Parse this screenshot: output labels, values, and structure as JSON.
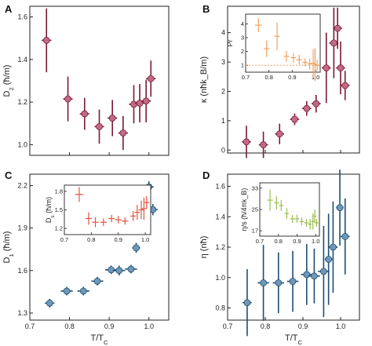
{
  "chart_data": [
    {
      "panel": "A",
      "type": "scatter",
      "ylabel_base": "D",
      "ylabel_sub": "2",
      "ylabel_unit": " (ħ/m)",
      "xlim": [
        0.7,
        1.05
      ],
      "ylim": [
        0.95,
        1.65
      ],
      "yticks": [
        "1.0",
        "1.2",
        "1.4",
        "1.6"
      ],
      "color": "#c06a86",
      "err_color": "#7a1a34",
      "points": [
        {
          "x": 0.742,
          "y": 1.49,
          "xerr": 0.012,
          "yerr": 0.15
        },
        {
          "x": 0.796,
          "y": 1.215,
          "xerr": 0.012,
          "yerr": 0.105
        },
        {
          "x": 0.838,
          "y": 1.145,
          "xerr": 0.012,
          "yerr": 0.075
        },
        {
          "x": 0.875,
          "y": 1.085,
          "xerr": 0.012,
          "yerr": 0.08
        },
        {
          "x": 0.908,
          "y": 1.125,
          "xerr": 0.012,
          "yerr": 0.085
        },
        {
          "x": 0.935,
          "y": 1.055,
          "xerr": 0.012,
          "yerr": 0.08
        },
        {
          "x": 0.962,
          "y": 1.19,
          "xerr": 0.012,
          "yerr": 0.09
        },
        {
          "x": 0.977,
          "y": 1.195,
          "xerr": 0.012,
          "yerr": 0.09
        },
        {
          "x": 0.993,
          "y": 1.205,
          "xerr": 0.012,
          "yerr": 0.1
        },
        {
          "x": 1.005,
          "y": 1.31,
          "xerr": 0.012,
          "yerr": 0.085
        }
      ]
    },
    {
      "panel": "B",
      "type": "scatter",
      "ylabel": "κ (nħk_B/m)",
      "xlim": [
        0.7,
        1.05
      ],
      "ylim": [
        -0.1,
        4.9
      ],
      "yticks": [
        "0",
        "1",
        "2",
        "3",
        "4"
      ],
      "color": "#c06a86",
      "err_color": "#7a1a34",
      "points": [
        {
          "x": 0.75,
          "y": 0.28,
          "xerr": 0.012,
          "yerr": 0.55
        },
        {
          "x": 0.795,
          "y": 0.18,
          "xerr": 0.012,
          "yerr": 0.45
        },
        {
          "x": 0.838,
          "y": 0.55,
          "xerr": 0.012,
          "yerr": 0.35
        },
        {
          "x": 0.878,
          "y": 1.05,
          "xerr": 0.012,
          "yerr": 0.2
        },
        {
          "x": 0.91,
          "y": 1.42,
          "xerr": 0.012,
          "yerr": 0.25
        },
        {
          "x": 0.935,
          "y": 1.58,
          "xerr": 0.012,
          "yerr": 0.3
        },
        {
          "x": 0.962,
          "y": 2.8,
          "xerr": 0.012,
          "yerr": 1.2
        },
        {
          "x": 0.982,
          "y": 3.65,
          "xerr": 0.012,
          "yerr": 1.2
        },
        {
          "x": 0.992,
          "y": 4.15,
          "xerr": 0.012,
          "yerr": 0.7
        },
        {
          "x": 1.0,
          "y": 2.8,
          "xerr": 0.012,
          "yerr": 0.9
        },
        {
          "x": 1.012,
          "y": 2.2,
          "xerr": 0.012,
          "yerr": 0.5
        }
      ],
      "inset": {
        "ylabel": "Pr",
        "xlim": [
          0.7,
          1.02
        ],
        "ylim": [
          0.5,
          4.7
        ],
        "yticks": [
          "1",
          "2",
          "3",
          "4"
        ],
        "xticks": [
          "0.7",
          "0.8",
          "0.9",
          "1.0"
        ],
        "color": "#f0a060",
        "ref_line": 1,
        "points": [
          {
            "x": 0.755,
            "y": 3.9,
            "xerr": 0.015,
            "yerr": 0.5
          },
          {
            "x": 0.79,
            "y": 2.2,
            "xerr": 0.012,
            "yerr": 0.6
          },
          {
            "x": 0.835,
            "y": 3.1,
            "xerr": 0.012,
            "yerr": 1.0
          },
          {
            "x": 0.875,
            "y": 1.65,
            "xerr": 0.012,
            "yerr": 0.4
          },
          {
            "x": 0.905,
            "y": 1.55,
            "xerr": 0.012,
            "yerr": 0.35
          },
          {
            "x": 0.93,
            "y": 1.4,
            "xerr": 0.012,
            "yerr": 0.35
          },
          {
            "x": 0.955,
            "y": 1.2,
            "xerr": 0.012,
            "yerr": 0.3
          },
          {
            "x": 0.975,
            "y": 1.1,
            "xerr": 0.01,
            "yerr": 0.4
          },
          {
            "x": 0.99,
            "y": 1.15,
            "xerr": 0.01,
            "yerr": 1.0
          },
          {
            "x": 0.998,
            "y": 1.05,
            "xerr": 0.01,
            "yerr": 1.2
          },
          {
            "x": 1.007,
            "y": 1.0,
            "xerr": 0.01,
            "yerr": 0.4
          }
        ]
      }
    },
    {
      "panel": "C",
      "type": "scatter",
      "ylabel_base": "D",
      "ylabel_sub": "1",
      "ylabel_unit": " (ħ/m)",
      "xlabel": "T/T_C",
      "xlim": [
        0.7,
        1.05
      ],
      "ylim": [
        1.25,
        2.28
      ],
      "yticks": [
        "1.3",
        "1.6",
        "1.9",
        "2.2"
      ],
      "xticks": [
        "0.7",
        "0.8",
        "0.9",
        "1.0"
      ],
      "color": "#6f97b8",
      "err_color": "#1d4e73",
      "points": [
        {
          "x": 0.75,
          "y": 1.37,
          "xerr": 0.012,
          "yerr": 0.03
        },
        {
          "x": 0.793,
          "y": 1.455,
          "xerr": 0.015,
          "yerr": 0.03
        },
        {
          "x": 0.835,
          "y": 1.455,
          "xerr": 0.015,
          "yerr": 0.03
        },
        {
          "x": 0.87,
          "y": 1.525,
          "xerr": 0.015,
          "yerr": 0.03
        },
        {
          "x": 0.905,
          "y": 1.605,
          "xerr": 0.015,
          "yerr": 0.03
        },
        {
          "x": 0.925,
          "y": 1.6,
          "xerr": 0.015,
          "yerr": 0.035
        },
        {
          "x": 0.955,
          "y": 1.61,
          "xerr": 0.015,
          "yerr": 0.03
        },
        {
          "x": 0.968,
          "y": 1.76,
          "xerr": 0.01,
          "yerr": 0.035
        },
        {
          "x": 0.982,
          "y": 1.98,
          "xerr": 0.012,
          "yerr": 0.035
        },
        {
          "x": 1.0,
          "y": 2.19,
          "xerr": 0.012,
          "yerr": 0.04
        },
        {
          "x": 1.01,
          "y": 2.03,
          "xerr": 0.012,
          "yerr": 0.04
        }
      ],
      "inset": {
        "ylabel_base": "D",
        "ylabel_sub": "s",
        "ylabel_unit": " (ħ/m)",
        "xlim": [
          0.7,
          1.02
        ],
        "ylim": [
          1.1,
          1.9
        ],
        "yticks": [
          "1.2",
          "1.5",
          "1.8"
        ],
        "xticks": [
          "0.7",
          "0.8",
          "0.9",
          "1.0"
        ],
        "color": "#e0553f",
        "points": [
          {
            "x": 0.755,
            "y": 1.75,
            "xerr": 0.015,
            "yerr": 0.12
          },
          {
            "x": 0.79,
            "y": 1.36,
            "xerr": 0.012,
            "yerr": 0.1
          },
          {
            "x": 0.815,
            "y": 1.3,
            "xerr": 0.012,
            "yerr": 0.08
          },
          {
            "x": 0.845,
            "y": 1.3,
            "xerr": 0.012,
            "yerr": 0.06
          },
          {
            "x": 0.875,
            "y": 1.36,
            "xerr": 0.012,
            "yerr": 0.06
          },
          {
            "x": 0.9,
            "y": 1.34,
            "xerr": 0.012,
            "yerr": 0.06
          },
          {
            "x": 0.925,
            "y": 1.32,
            "xerr": 0.012,
            "yerr": 0.06
          },
          {
            "x": 0.955,
            "y": 1.4,
            "xerr": 0.01,
            "yerr": 0.08
          },
          {
            "x": 0.97,
            "y": 1.46,
            "xerr": 0.01,
            "yerr": 0.12
          },
          {
            "x": 0.985,
            "y": 1.5,
            "xerr": 0.01,
            "yerr": 0.15
          },
          {
            "x": 0.995,
            "y": 1.52,
            "xerr": 0.01,
            "yerr": 0.18
          },
          {
            "x": 1.005,
            "y": 1.62,
            "xerr": 0.01,
            "yerr": 0.1
          }
        ]
      }
    },
    {
      "panel": "D",
      "type": "scatter",
      "ylabel": "η (nħ)",
      "xlabel": "T/T_C",
      "xlim": [
        0.7,
        1.05
      ],
      "ylim": [
        0.72,
        1.68
      ],
      "yticks": [
        "0.8",
        "1.0",
        "1.2",
        "1.4",
        "1.6"
      ],
      "xticks": [
        "0.7",
        "0.8",
        "0.9",
        "1.0"
      ],
      "color": "#6f97b8",
      "err_color": "#1d4e73",
      "points": [
        {
          "x": 0.752,
          "y": 0.835,
          "xerr": 0.012,
          "yerr": 0.22
        },
        {
          "x": 0.795,
          "y": 0.965,
          "xerr": 0.015,
          "yerr": 0.25
        },
        {
          "x": 0.835,
          "y": 0.965,
          "xerr": 0.015,
          "yerr": 0.2
        },
        {
          "x": 0.873,
          "y": 0.975,
          "xerr": 0.015,
          "yerr": 0.2
        },
        {
          "x": 0.91,
          "y": 1.02,
          "xerr": 0.015,
          "yerr": 0.2
        },
        {
          "x": 0.93,
          "y": 1.01,
          "xerr": 0.015,
          "yerr": 0.18
        },
        {
          "x": 0.955,
          "y": 1.04,
          "xerr": 0.015,
          "yerr": 0.3
        },
        {
          "x": 0.968,
          "y": 1.12,
          "xerr": 0.01,
          "yerr": 0.3
        },
        {
          "x": 0.98,
          "y": 1.2,
          "xerr": 0.012,
          "yerr": 0.3
        },
        {
          "x": 0.998,
          "y": 1.46,
          "xerr": 0.01,
          "yerr": 0.25
        },
        {
          "x": 1.012,
          "y": 1.27,
          "xerr": 0.012,
          "yerr": 0.25
        }
      ],
      "inset": {
        "ylabel": "η/s (ħ/4πk_B)",
        "xlim": [
          0.7,
          1.02
        ],
        "ylim": [
          15,
          35
        ],
        "yticks": [
          "17",
          "25",
          "33"
        ],
        "xticks": [
          "0.7",
          "0.8",
          "0.9",
          "1.0"
        ],
        "color": "#9bbf4f",
        "points": [
          {
            "x": 0.755,
            "y": 28.5,
            "xerr": 0.015,
            "yerr": 4.0
          },
          {
            "x": 0.79,
            "y": 27.5,
            "xerr": 0.012,
            "yerr": 2.5
          },
          {
            "x": 0.815,
            "y": 26.5,
            "xerr": 0.012,
            "yerr": 2.0
          },
          {
            "x": 0.845,
            "y": 23.5,
            "xerr": 0.012,
            "yerr": 2.0
          },
          {
            "x": 0.875,
            "y": 21.5,
            "xerr": 0.012,
            "yerr": 1.5
          },
          {
            "x": 0.9,
            "y": 21.5,
            "xerr": 0.012,
            "yerr": 1.5
          },
          {
            "x": 0.925,
            "y": 20.5,
            "xerr": 0.012,
            "yerr": 1.5
          },
          {
            "x": 0.95,
            "y": 20.0,
            "xerr": 0.012,
            "yerr": 1.5
          },
          {
            "x": 0.97,
            "y": 19.5,
            "xerr": 0.01,
            "yerr": 2.0
          },
          {
            "x": 0.985,
            "y": 20.5,
            "xerr": 0.01,
            "yerr": 3.0
          },
          {
            "x": 0.995,
            "y": 22.5,
            "xerr": 0.01,
            "yerr": 2.5
          },
          {
            "x": 1.005,
            "y": 20.0,
            "xerr": 0.01,
            "yerr": 1.5
          }
        ]
      }
    }
  ]
}
